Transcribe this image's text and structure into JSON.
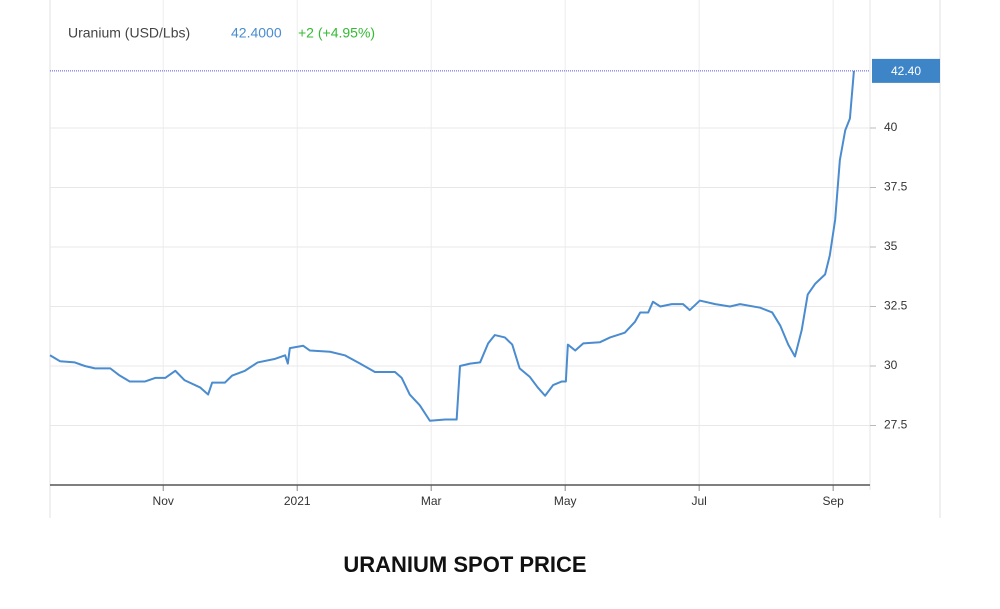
{
  "chart_data": {
    "type": "line",
    "title": "Uranium (USD/Lbs)",
    "price": "42.4000",
    "change": "+2 (+4.95%)",
    "caption": "URANIUM SPOT PRICE",
    "current": {
      "value": 42.4,
      "label": "42.40"
    },
    "x": [
      0.31,
      0.46,
      0.68,
      0.83,
      0.98,
      1.21,
      1.35,
      1.5,
      1.73,
      1.88,
      2.03,
      2.18,
      2.32,
      2.55,
      2.67,
      2.73,
      2.92,
      3.03,
      3.22,
      3.41,
      3.67,
      3.82,
      3.86,
      3.89,
      4.09,
      4.19,
      4.49,
      4.71,
      4.94,
      5.16,
      5.46,
      5.56,
      5.68,
      5.83,
      5.98,
      6.21,
      6.38,
      6.43,
      6.58,
      6.73,
      6.85,
      6.95,
      7.1,
      7.21,
      7.32,
      7.47,
      7.59,
      7.7,
      7.82,
      7.95,
      8.01,
      8.04,
      8.15,
      8.27,
      8.52,
      8.67,
      8.89,
      9.04,
      9.12,
      9.24,
      9.31,
      9.42,
      9.59,
      9.76,
      9.86,
      10.01,
      10.24,
      10.46,
      10.61,
      10.91,
      11.09,
      11.21,
      11.33,
      11.43,
      11.53,
      11.62,
      11.73,
      11.88,
      11.95,
      12.03,
      12.1,
      12.18,
      12.25,
      12.31
    ],
    "series": [
      {
        "name": "Uranium (USD/Lbs)",
        "color": "#4a8ccf",
        "values": [
          30.45,
          30.2,
          30.15,
          30.0,
          29.9,
          29.9,
          29.6,
          29.35,
          29.35,
          29.5,
          29.5,
          29.8,
          29.4,
          29.1,
          28.8,
          29.3,
          29.3,
          29.6,
          29.8,
          30.15,
          30.3,
          30.45,
          30.1,
          30.75,
          30.85,
          30.65,
          30.6,
          30.45,
          30.1,
          29.75,
          29.75,
          29.5,
          28.8,
          28.35,
          27.7,
          27.75,
          27.75,
          30.0,
          30.1,
          30.15,
          30.95,
          31.3,
          31.2,
          30.9,
          29.9,
          29.55,
          29.1,
          28.75,
          29.2,
          29.35,
          29.35,
          30.9,
          30.65,
          30.95,
          31.0,
          31.2,
          31.4,
          31.85,
          32.25,
          32.25,
          32.7,
          32.5,
          32.6,
          32.6,
          32.35,
          32.75,
          32.6,
          32.5,
          32.6,
          32.45,
          32.25,
          31.7,
          30.9,
          30.4,
          31.5,
          33.0,
          33.45,
          33.85,
          34.65,
          36.15,
          38.65,
          39.9,
          40.4,
          42.4
        ]
      }
    ],
    "xlim": [
      0.31,
      12.55
    ],
    "xticks": [
      {
        "value": 2,
        "label": "Nov"
      },
      {
        "value": 4,
        "label": "2021"
      },
      {
        "value": 6,
        "label": "Mar"
      },
      {
        "value": 8,
        "label": "May"
      },
      {
        "value": 10,
        "label": "Jul"
      },
      {
        "value": 12,
        "label": "Sep"
      }
    ],
    "ylim": [
      25,
      45
    ],
    "yticks": [
      27.5,
      30,
      32.5,
      35,
      37.5,
      40
    ],
    "grid": true
  }
}
